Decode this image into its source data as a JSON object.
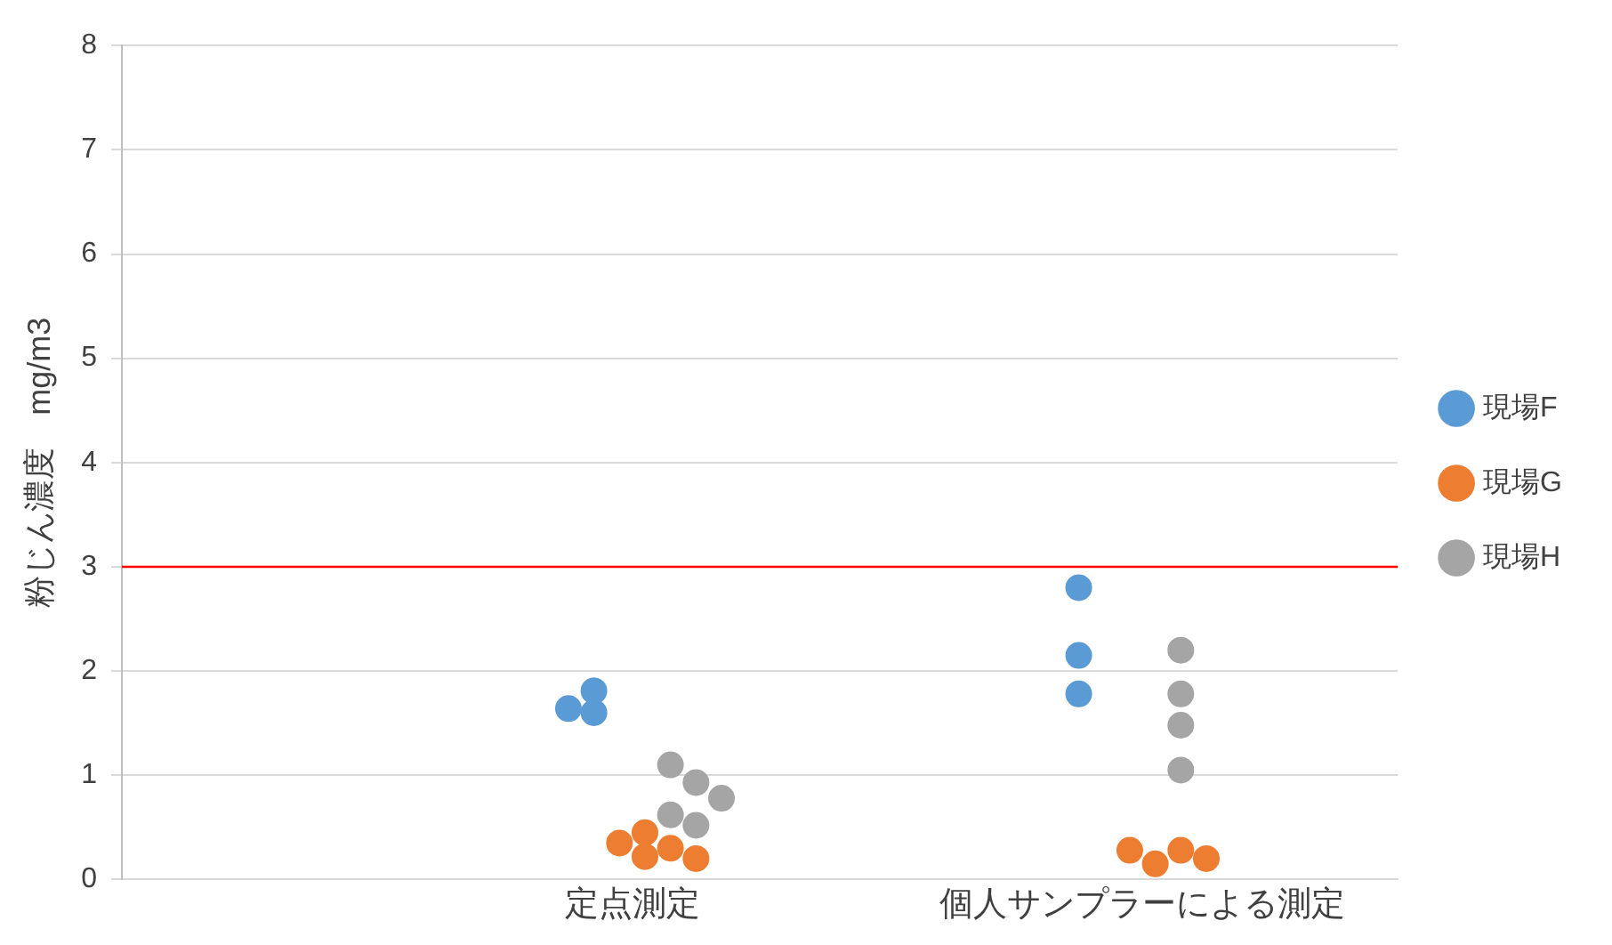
{
  "chart_data": {
    "type": "scatter",
    "ylabel": "粉じん濃度　mg/m3",
    "categories": [
      null,
      null,
      "定点測定",
      null,
      "個人サンプラーによる測定",
      null
    ],
    "ylim": [
      0,
      8
    ],
    "yticks": [
      0,
      1,
      2,
      3,
      4,
      5,
      6,
      7,
      8
    ],
    "grid": "y",
    "legend": "right",
    "marker": "circle",
    "series": [
      {
        "name": "現場F",
        "color": "#5b9bd5",
        "x": [
          "定点測定",
          "定点測定",
          "定点測定",
          "個人サンプラーによる測定",
          "個人サンプラーによる測定",
          "個人サンプラーによる測定"
        ],
        "values": [
          1.64,
          1.81,
          1.6,
          2.15,
          2.8,
          1.78
        ]
      },
      {
        "name": "現場G",
        "color": "#ed7d31",
        "x": [
          "定点測定",
          "定点測定",
          "定点測定",
          "定点測定",
          "定点測定",
          "個人サンプラーによる測定",
          "個人サンプラーによる測定",
          "個人サンプラーによる測定",
          "個人サンプラーによる測定"
        ],
        "values": [
          0.35,
          0.22,
          0.45,
          0.3,
          0.2,
          0.28,
          0.15,
          0.28,
          0.2
        ]
      },
      {
        "name": "現場H",
        "color": "#a5a5a5",
        "x": [
          "定点測定",
          "定点測定",
          "定点測定",
          "定点測定",
          "定点測定",
          "個人サンプラーによる測定",
          "個人サンプラーによる測定",
          "個人サンプラーによる測定",
          "個人サンプラーによる測定"
        ],
        "values": [
          0.62,
          0.52,
          1.1,
          0.93,
          0.78,
          2.2,
          1.05,
          1.78,
          1.48
        ]
      }
    ],
    "ref_lines": [
      {
        "axis": "y",
        "value": 3,
        "color": "#ff0000"
      }
    ]
  }
}
